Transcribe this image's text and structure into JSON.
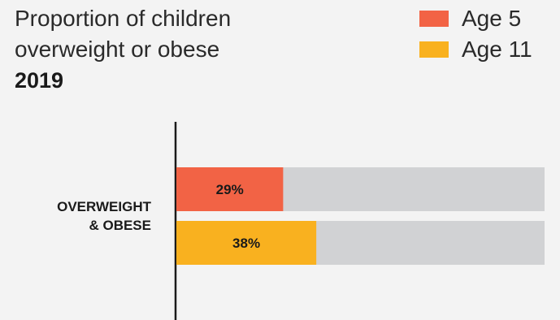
{
  "title_lines": [
    "Proportion of children",
    "overweight or obese"
  ],
  "year": "2019",
  "legend": [
    {
      "label": "Age 5",
      "color": "#f26345"
    },
    {
      "label": "Age 11",
      "color": "#f9b11f"
    }
  ],
  "track_color": "#d1d2d4",
  "chart_data": {
    "type": "bar",
    "orientation": "horizontal",
    "categories": [
      "OVERWEIGHT & OBESE"
    ],
    "category_label_lines": [
      "OVERWEIGHT",
      "& OBESE"
    ],
    "series": [
      {
        "name": "Age 5",
        "values": [
          29
        ],
        "labels": [
          "29%"
        ],
        "color": "#f26345"
      },
      {
        "name": "Age 11",
        "values": [
          38
        ],
        "labels": [
          "38%"
        ],
        "color": "#f9b11f"
      }
    ],
    "xlim": [
      0,
      100
    ],
    "grid": false,
    "legend_position": "top-right"
  }
}
